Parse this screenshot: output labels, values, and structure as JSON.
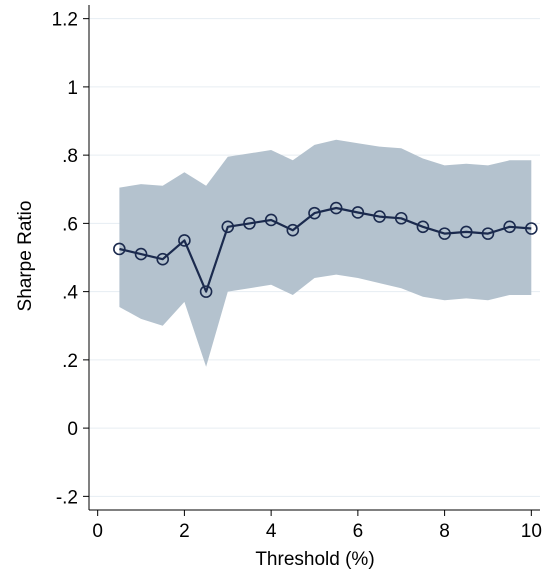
{
  "chart_data": {
    "type": "line",
    "title": "",
    "xlabel": "Threshold (%)",
    "ylabel": "Sharpe Ratio",
    "xlim": [
      -0.2,
      10.2
    ],
    "ylim": [
      -0.24,
      1.24
    ],
    "x_ticks": [
      0,
      2,
      4,
      6,
      8,
      10
    ],
    "x_tick_labels": [
      "0",
      "2",
      "4",
      "6",
      "8",
      "10"
    ],
    "y_ticks": [
      -0.2,
      0,
      0.2,
      0.4,
      0.6,
      0.8,
      1,
      1.2
    ],
    "y_tick_labels": [
      "-.2",
      "0",
      ".2",
      ".4",
      ".6",
      ".8",
      "1",
      "1.2"
    ],
    "grid": "horizontal",
    "legend": "none",
    "series": [
      {
        "x": [
          0.5,
          1,
          1.5,
          2,
          2.5,
          3,
          3.5,
          4,
          4.5,
          5,
          5.5,
          6,
          6.5,
          7,
          7.5,
          8,
          8.5,
          9,
          9.5,
          10
        ],
        "values": [
          0.525,
          0.51,
          0.495,
          0.55,
          0.4,
          0.59,
          0.6,
          0.61,
          0.58,
          0.63,
          0.645,
          0.632,
          0.62,
          0.615,
          0.59,
          0.57,
          0.575,
          0.57,
          0.59,
          0.585
        ],
        "color": "#1b2a4e",
        "marker": "hollow-circle"
      }
    ],
    "confidence_band": {
      "x": [
        0.5,
        1,
        1.5,
        2,
        2.5,
        3,
        3.5,
        4,
        4.5,
        5,
        5.5,
        6,
        6.5,
        7,
        7.5,
        8,
        8.5,
        9,
        9.5,
        10
      ],
      "upper": [
        0.705,
        0.715,
        0.71,
        0.75,
        0.71,
        0.795,
        0.805,
        0.815,
        0.785,
        0.83,
        0.845,
        0.835,
        0.825,
        0.82,
        0.79,
        0.77,
        0.775,
        0.77,
        0.785,
        0.785
      ],
      "lower": [
        0.355,
        0.32,
        0.3,
        0.37,
        0.18,
        0.4,
        0.41,
        0.42,
        0.39,
        0.44,
        0.45,
        0.44,
        0.425,
        0.41,
        0.385,
        0.375,
        0.38,
        0.375,
        0.39,
        0.39
      ],
      "color": "#b4c2ce"
    },
    "colors": {
      "gridline": "#e6edf2",
      "axis": "#000000"
    }
  }
}
